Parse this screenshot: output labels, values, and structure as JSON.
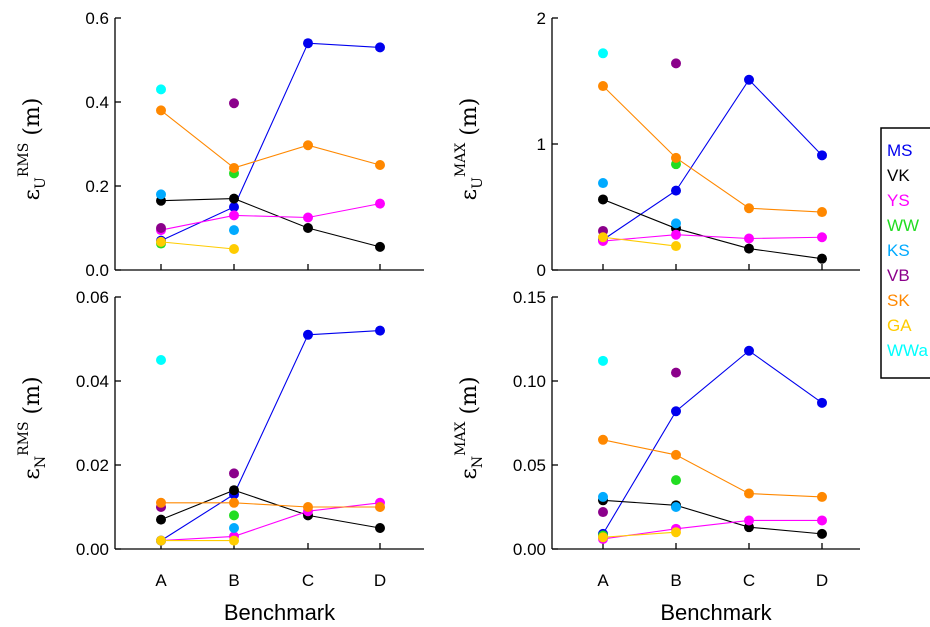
{
  "figure": {
    "xlabel": "Benchmark",
    "categories": [
      "A",
      "B",
      "C",
      "D"
    ]
  },
  "legend": [
    {
      "name": "MS",
      "color": "#0000ee"
    },
    {
      "name": "VK",
      "color": "#000000"
    },
    {
      "name": "YS",
      "color": "#ff00ff"
    },
    {
      "name": "WW",
      "color": "#22dd22"
    },
    {
      "name": "KS",
      "color": "#00aaff"
    },
    {
      "name": "VB",
      "color": "#8b008b"
    },
    {
      "name": "SK",
      "color": "#ff8800"
    },
    {
      "name": "GA",
      "color": "#ffcc00"
    },
    {
      "name": "WWa",
      "color": "#00ffff"
    }
  ],
  "chart_data": [
    {
      "type": "scatter",
      "panel": "top-left",
      "ylabel": {
        "symbol": "ε",
        "sub": "U",
        "sup": "RMS",
        "unit": "(m)"
      },
      "ylim": [
        0,
        0.6
      ],
      "yticks": [
        "0.0",
        "0.2",
        "0.4",
        "0.6"
      ],
      "xlabel": "",
      "categories": [
        "A",
        "B",
        "C",
        "D"
      ],
      "series": [
        {
          "name": "MS",
          "values": [
            0.07,
            0.15,
            0.54,
            0.53
          ],
          "line": true
        },
        {
          "name": "VK",
          "values": [
            0.165,
            0.17,
            0.1,
            0.055
          ],
          "line": true
        },
        {
          "name": "YS",
          "values": [
            0.095,
            0.13,
            0.125,
            0.158
          ],
          "line": true
        },
        {
          "name": "WW",
          "values": [
            0.063,
            0.23,
            null,
            null
          ],
          "line": false
        },
        {
          "name": "KS",
          "values": [
            0.18,
            0.095,
            null,
            null
          ],
          "line": false
        },
        {
          "name": "VB",
          "values": [
            0.1,
            0.397,
            null,
            null
          ],
          "line": false
        },
        {
          "name": "SK",
          "values": [
            0.38,
            0.243,
            0.297,
            0.25
          ],
          "line": true
        },
        {
          "name": "GA",
          "values": [
            0.067,
            0.05,
            null,
            null
          ],
          "line": true
        },
        {
          "name": "WWa",
          "values": [
            0.43,
            null,
            null,
            null
          ],
          "line": false
        }
      ]
    },
    {
      "type": "scatter",
      "panel": "top-right",
      "ylabel": {
        "symbol": "ε",
        "sub": "U",
        "sup": "MAX",
        "unit": "(m)"
      },
      "ylim": [
        0,
        2
      ],
      "yticks": [
        "0",
        "1",
        "2"
      ],
      "xlabel": "",
      "categories": [
        "A",
        "B",
        "C",
        "D"
      ],
      "series": [
        {
          "name": "MS",
          "values": [
            0.24,
            0.63,
            1.51,
            0.91
          ],
          "line": true
        },
        {
          "name": "VK",
          "values": [
            0.56,
            0.33,
            0.17,
            0.09
          ],
          "line": true
        },
        {
          "name": "YS",
          "values": [
            0.23,
            0.28,
            0.25,
            0.26
          ],
          "line": true
        },
        {
          "name": "WW",
          "values": [
            null,
            0.84,
            null,
            null
          ],
          "line": false
        },
        {
          "name": "KS",
          "values": [
            0.69,
            0.37,
            null,
            null
          ],
          "line": false
        },
        {
          "name": "VB",
          "values": [
            0.31,
            1.64,
            null,
            null
          ],
          "line": false
        },
        {
          "name": "SK",
          "values": [
            1.46,
            0.89,
            0.49,
            0.46
          ],
          "line": true
        },
        {
          "name": "GA",
          "values": [
            0.26,
            0.19,
            null,
            null
          ],
          "line": true
        },
        {
          "name": "WWa",
          "values": [
            1.72,
            null,
            null,
            null
          ],
          "line": false
        }
      ]
    },
    {
      "type": "scatter",
      "panel": "bottom-left",
      "ylabel": {
        "symbol": "ε",
        "sub": "N",
        "sup": "RMS",
        "unit": "(m)"
      },
      "ylim": [
        0,
        0.06
      ],
      "yticks": [
        "0.00",
        "0.02",
        "0.04",
        "0.06"
      ],
      "xlabel": "Benchmark",
      "categories": [
        "A",
        "B",
        "C",
        "D"
      ],
      "series": [
        {
          "name": "MS",
          "values": [
            0.002,
            0.013,
            0.051,
            0.052
          ],
          "line": true
        },
        {
          "name": "VK",
          "values": [
            0.007,
            0.014,
            0.008,
            0.005
          ],
          "line": true
        },
        {
          "name": "YS",
          "values": [
            0.002,
            0.003,
            0.009,
            0.011
          ],
          "line": true
        },
        {
          "name": "WW",
          "values": [
            null,
            0.008,
            null,
            null
          ],
          "line": false
        },
        {
          "name": "KS",
          "values": [
            0.002,
            0.005,
            null,
            null
          ],
          "line": false
        },
        {
          "name": "VB",
          "values": [
            0.01,
            0.018,
            null,
            null
          ],
          "line": false
        },
        {
          "name": "SK",
          "values": [
            0.011,
            0.011,
            0.01,
            0.01
          ],
          "line": true
        },
        {
          "name": "GA",
          "values": [
            0.002,
            0.002,
            null,
            null
          ],
          "line": true
        },
        {
          "name": "WWa",
          "values": [
            0.045,
            null,
            null,
            null
          ],
          "line": false
        }
      ]
    },
    {
      "type": "scatter",
      "panel": "bottom-right",
      "ylabel": {
        "symbol": "ε",
        "sub": "N",
        "sup": "MAX",
        "unit": "(m)"
      },
      "ylim": [
        0,
        0.15
      ],
      "yticks": [
        "0.00",
        "0.05",
        "0.10",
        "0.15"
      ],
      "xlabel": "Benchmark",
      "categories": [
        "A",
        "B",
        "C",
        "D"
      ],
      "series": [
        {
          "name": "MS",
          "values": [
            0.009,
            0.082,
            0.118,
            0.087
          ],
          "line": true
        },
        {
          "name": "VK",
          "values": [
            0.029,
            0.026,
            0.013,
            0.009
          ],
          "line": true
        },
        {
          "name": "YS",
          "values": [
            0.006,
            0.012,
            0.017,
            0.017
          ],
          "line": true
        },
        {
          "name": "WW",
          "values": [
            0.008,
            0.041,
            null,
            null
          ],
          "line": false
        },
        {
          "name": "KS",
          "values": [
            0.031,
            0.025,
            null,
            null
          ],
          "line": false
        },
        {
          "name": "VB",
          "values": [
            0.022,
            0.105,
            null,
            null
          ],
          "line": false
        },
        {
          "name": "SK",
          "values": [
            0.065,
            0.056,
            0.033,
            0.031
          ],
          "line": true
        },
        {
          "name": "GA",
          "values": [
            0.007,
            0.01,
            null,
            null
          ],
          "line": true
        },
        {
          "name": "WWa",
          "values": [
            0.112,
            null,
            null,
            null
          ],
          "line": false
        }
      ]
    }
  ]
}
